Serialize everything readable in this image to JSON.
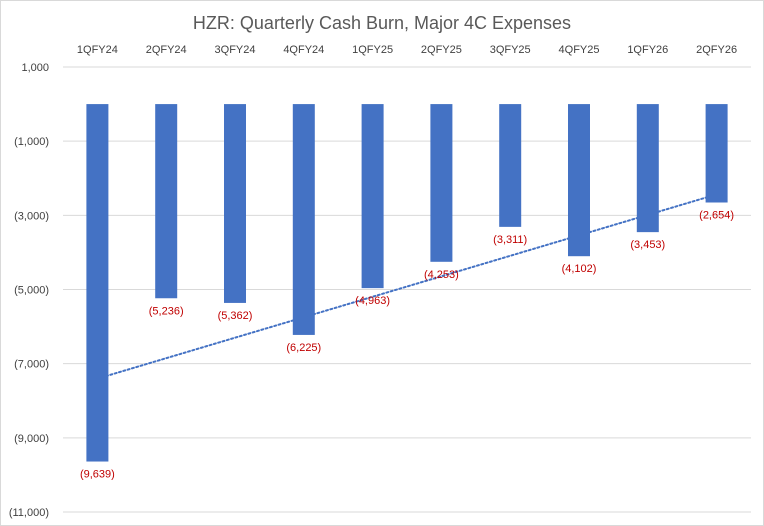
{
  "chart_data": {
    "type": "bar",
    "title": "HZR: Quarterly Cash Burn, Major 4C Expenses",
    "categories": [
      "1QFY24",
      "2QFY24",
      "3QFY24",
      "4QFY24",
      "1QFY25",
      "2QFY25",
      "3QFY25",
      "4QFY25",
      "1QFY26",
      "2QFY26"
    ],
    "values": [
      -9639,
      -5236,
      -5362,
      -6225,
      -4963,
      -4253,
      -3311,
      -4102,
      -3453,
      -2654
    ],
    "data_labels": [
      "(9,639)",
      "(5,236)",
      "(5,362)",
      "(6,225)",
      "(4,963)",
      "(4,253)",
      "(3,311)",
      "(4,102)",
      "(3,453)",
      "(2,654)"
    ],
    "ylim": [
      -11000,
      1000
    ],
    "yticks": [
      1000,
      -1000,
      -3000,
      -5000,
      -7000,
      -9000,
      -11000
    ],
    "ytick_labels": [
      "1,000",
      "(1,000)",
      "(3,000)",
      "(5,000)",
      "(7,000)",
      "(9,000)",
      "(11,000)"
    ],
    "category_axis_position": "top",
    "grid": true,
    "trendline": {
      "type": "linear",
      "style": "dotted"
    },
    "legend": "none",
    "colors": {
      "bar": "#4472c4",
      "data_label": "#c00000",
      "trendline": "#4472c4",
      "grid": "#d9d9d9",
      "title": "#595959"
    }
  }
}
